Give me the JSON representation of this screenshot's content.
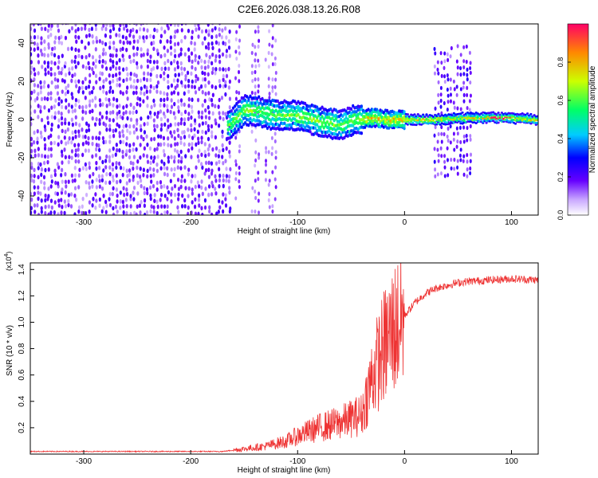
{
  "figure": {
    "title": "C2E6.2026.038.13.26.R08"
  },
  "chart_data": [
    {
      "type": "heatmap",
      "title": "C2E6.2026.038.13.26.R08",
      "xlabel": "Height of straight line (km)",
      "ylabel": "Frequency (Hz)",
      "xlim": [
        -350,
        125
      ],
      "ylim": [
        -50,
        50
      ],
      "xticks": [
        -300,
        -200,
        -100,
        0,
        100
      ],
      "yticks": [
        -40,
        -20,
        0,
        20,
        40
      ],
      "colorbar": {
        "label": "Normalized spectral amplitude",
        "range": [
          0,
          1
        ],
        "ticks": [
          0.0,
          0.2,
          0.4,
          0.6,
          0.8
        ]
      },
      "signal_center_track": [
        {
          "x": -163,
          "y": -3
        },
        {
          "x": -150,
          "y": 5
        },
        {
          "x": -135,
          "y": 4
        },
        {
          "x": -120,
          "y": 2
        },
        {
          "x": -100,
          "y": 2
        },
        {
          "x": -80,
          "y": -1
        },
        {
          "x": -60,
          "y": -3
        },
        {
          "x": -45,
          "y": 0
        },
        {
          "x": -30,
          "y": 1
        },
        {
          "x": -15,
          "y": 0
        },
        {
          "x": 0,
          "y": 0
        },
        {
          "x": 30,
          "y": 0
        },
        {
          "x": 60,
          "y": 1
        },
        {
          "x": 95,
          "y": 1
        },
        {
          "x": 125,
          "y": 0
        }
      ],
      "grid": false
    },
    {
      "type": "line",
      "xlabel": "Height of straight line (km)",
      "ylabel": "SNR (10 * v/v)",
      "y_multiplier": "(x10",
      "y_multiplier_exp": "4",
      "y_multiplier_close": ")",
      "xlim": [
        -350,
        125
      ],
      "ylim": [
        0,
        1.45
      ],
      "xticks": [
        -300,
        -200,
        -100,
        0,
        100
      ],
      "yticks": [
        0.2,
        0.4,
        0.6,
        0.8,
        1.0,
        1.2,
        1.4
      ],
      "series": [
        {
          "color": "#ee3333",
          "x": [
            -350,
            -250,
            -170,
            -160,
            -150,
            -140,
            -130,
            -120,
            -110,
            -100,
            -90,
            -80,
            -70,
            -60,
            -50,
            -40,
            -35,
            -30,
            -25,
            -20,
            -15,
            -10,
            -5,
            0,
            10,
            20,
            30,
            40,
            50,
            60,
            80,
            100,
            125
          ],
          "y": [
            0.02,
            0.02,
            0.02,
            0.03,
            0.04,
            0.05,
            0.06,
            0.08,
            0.1,
            0.14,
            0.17,
            0.2,
            0.22,
            0.24,
            0.27,
            0.3,
            0.45,
            0.6,
            0.7,
            0.8,
            0.88,
            0.95,
            1.0,
            1.05,
            1.15,
            1.22,
            1.26,
            1.28,
            1.3,
            1.31,
            1.32,
            1.33,
            1.32
          ]
        }
      ],
      "grid": false
    }
  ]
}
